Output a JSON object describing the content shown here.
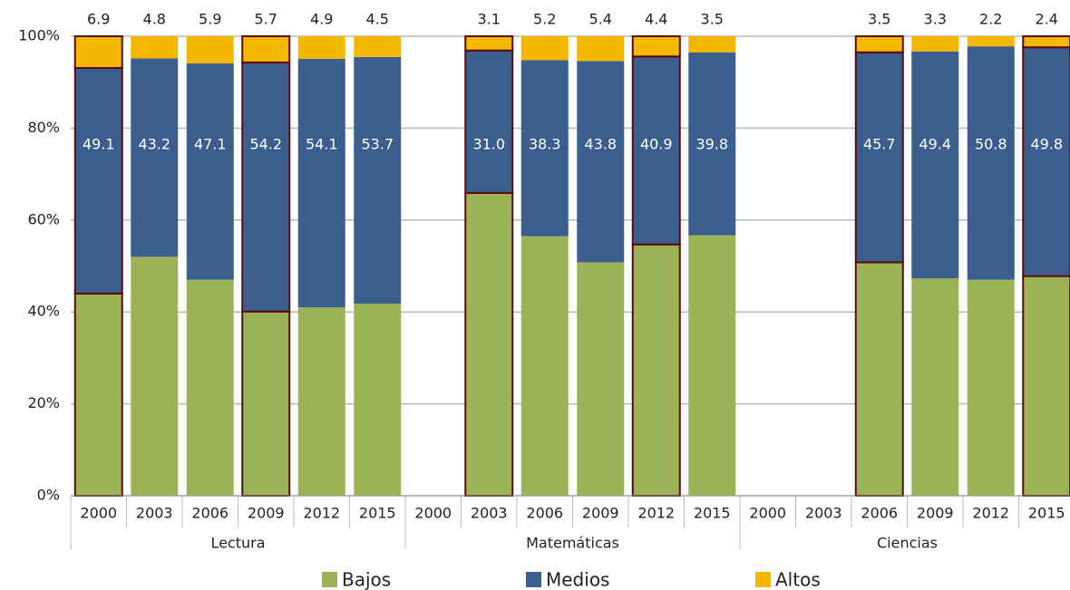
{
  "chart_data": {
    "type": "stacked_bar",
    "groups": [
      "Lectura",
      "Matemáticas",
      "Ciencias"
    ],
    "categories": [
      "2000",
      "2003",
      "2006",
      "2009",
      "2012",
      "2015",
      "2000",
      "2003",
      "2006",
      "2009",
      "2012",
      "2015",
      "2000",
      "2003",
      "2006",
      "2009",
      "2012",
      "2015"
    ],
    "series": [
      {
        "name": "Bajos",
        "color": "#9bb355",
        "values": [
          44.0,
          52.0,
          47.0,
          40.1,
          41.0,
          41.8,
          null,
          65.9,
          56.5,
          50.8,
          54.7,
          56.7,
          null,
          null,
          50.8,
          47.3,
          47.0,
          47.8
        ]
      },
      {
        "name": "Medios",
        "color": "#3a5f8f",
        "values": [
          49.1,
          43.2,
          47.1,
          54.2,
          54.1,
          53.7,
          null,
          31.0,
          38.3,
          43.8,
          40.9,
          39.8,
          null,
          null,
          45.7,
          49.4,
          50.8,
          49.8
        ],
        "value_labels": [
          "49.1",
          "43.2",
          "47.1",
          "54.2",
          "54.1",
          "53.7",
          null,
          "31.0",
          "38.3",
          "43.8",
          "40.9",
          "39.8",
          null,
          null,
          "45.7",
          "49.4",
          "50.8",
          "49.8"
        ]
      },
      {
        "name": "Altos",
        "color": "#f5b800",
        "values": [
          6.9,
          4.8,
          5.9,
          5.7,
          4.9,
          4.5,
          null,
          3.1,
          5.2,
          5.4,
          4.4,
          3.5,
          null,
          null,
          3.5,
          3.3,
          2.2,
          2.4
        ]
      }
    ],
    "outline_color": "#5c0a0a",
    "outlined": [
      true,
      false,
      false,
      true,
      false,
      false,
      false,
      true,
      false,
      false,
      true,
      false,
      false,
      false,
      true,
      false,
      false,
      true
    ],
    "ylim": [
      0,
      100
    ],
    "yticks": [
      {
        "value": 0,
        "label": "0%"
      },
      {
        "value": 20,
        "label": "20%"
      },
      {
        "value": 40,
        "label": "40%"
      },
      {
        "value": 60,
        "label": "60%"
      },
      {
        "value": 80,
        "label": "80%"
      },
      {
        "value": 100,
        "label": "100%"
      }
    ],
    "grid": true,
    "legend": "bottom"
  }
}
